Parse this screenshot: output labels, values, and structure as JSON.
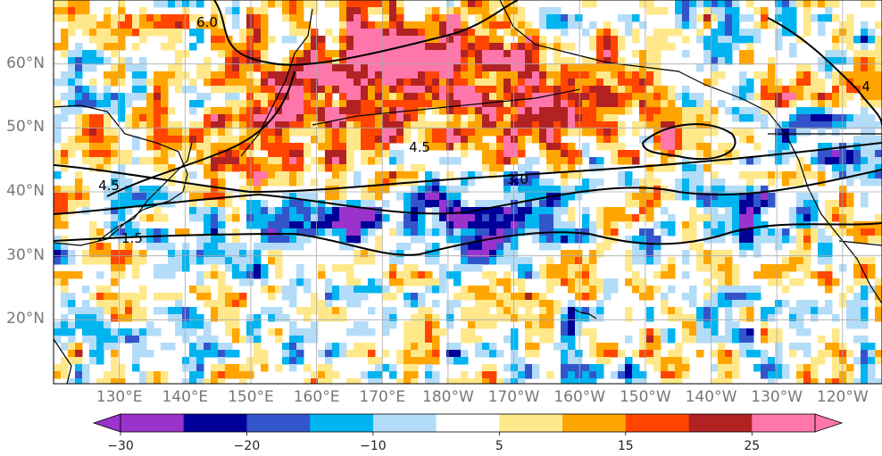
{
  "map": {
    "lat_labels": [
      "60°N",
      "50°N",
      "40°N",
      "30°N",
      "20°N"
    ],
    "lat_values": [
      60,
      50,
      40,
      30,
      20
    ],
    "lon_labels": [
      "130°E",
      "140°E",
      "150°E",
      "160°E",
      "170°E",
      "180°W",
      "170°W",
      "160°W",
      "150°W",
      "140°W",
      "130°W",
      "120°W"
    ],
    "lon_values": [
      130,
      140,
      150,
      160,
      170,
      180,
      190,
      200,
      210,
      220,
      230,
      240
    ],
    "extent": {
      "lon_min": 120,
      "lon_max": 246,
      "lat_min": 10,
      "lat_max": 70
    },
    "contour_labels": [
      "6.0",
      "4.5",
      "3.0",
      "1.5",
      "4.5",
      "4"
    ]
  },
  "colorbar": {
    "levels": [
      -30,
      -25,
      -20,
      -15,
      -10,
      -5,
      5,
      10,
      15,
      20,
      25,
      30
    ],
    "colors": [
      "#9933cc",
      "#000099",
      "#3355cc",
      "#00b4f0",
      "#b3dcf8",
      "#ffffff",
      "#ffe88a",
      "#ffa500",
      "#ff4500",
      "#b22222",
      "#ff77aa"
    ],
    "over_color": "#ff77aa",
    "under_color": "#9933cc",
    "tick_labels": [
      "−30",
      "−20",
      "−10",
      "5",
      "15",
      "25"
    ],
    "tick_values": [
      -30,
      -20,
      -10,
      5,
      15,
      25
    ]
  }
}
